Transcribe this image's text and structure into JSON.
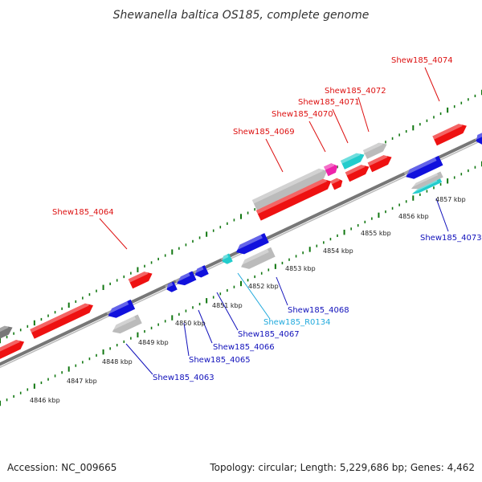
{
  "title": "Shewanella baltica OS185, complete genome",
  "accession": "Accession: NC_009665",
  "summary": "Topology: circular; Length: 5,229,686 bp; Genes: 4,462",
  "colors": {
    "forward": "#ee1111",
    "reverse": "#1111dd",
    "rna_label": "#22aadd",
    "pseudo_gray": "#bbbbbb",
    "cyan": "#22cccc",
    "magenta": "#ee22aa",
    "backbone": "#888888",
    "ticks": "#117711"
  },
  "tick_labels": [
    "4846 kbp",
    "4847 kbp",
    "4848 kbp",
    "4849 kbp",
    "4850 kbp",
    "4851 kbp",
    "4852 kbp",
    "4853 kbp",
    "4854 kbp",
    "4855 kbp",
    "4856 kbp",
    "4857 kbp"
  ],
  "gene_labels": [
    {
      "text": "Shew185_4074",
      "strand": "forward"
    },
    {
      "text": "Shew185_4072",
      "strand": "forward"
    },
    {
      "text": "Shew185_4071",
      "strand": "forward"
    },
    {
      "text": "Shew185_4070",
      "strand": "forward"
    },
    {
      "text": "Shew185_4069",
      "strand": "forward"
    },
    {
      "text": "Shew185_4064",
      "strand": "forward"
    },
    {
      "text": "Shew185_4073",
      "strand": "reverse"
    },
    {
      "text": "Shew185_4068",
      "strand": "reverse"
    },
    {
      "text": "Shew185_R0134",
      "strand": "rna"
    },
    {
      "text": "Shew185_4067",
      "strand": "reverse"
    },
    {
      "text": "Shew185_4066",
      "strand": "reverse"
    },
    {
      "text": "Shew185_4065",
      "strand": "reverse"
    },
    {
      "text": "Shew185_4063",
      "strand": "reverse"
    }
  ]
}
